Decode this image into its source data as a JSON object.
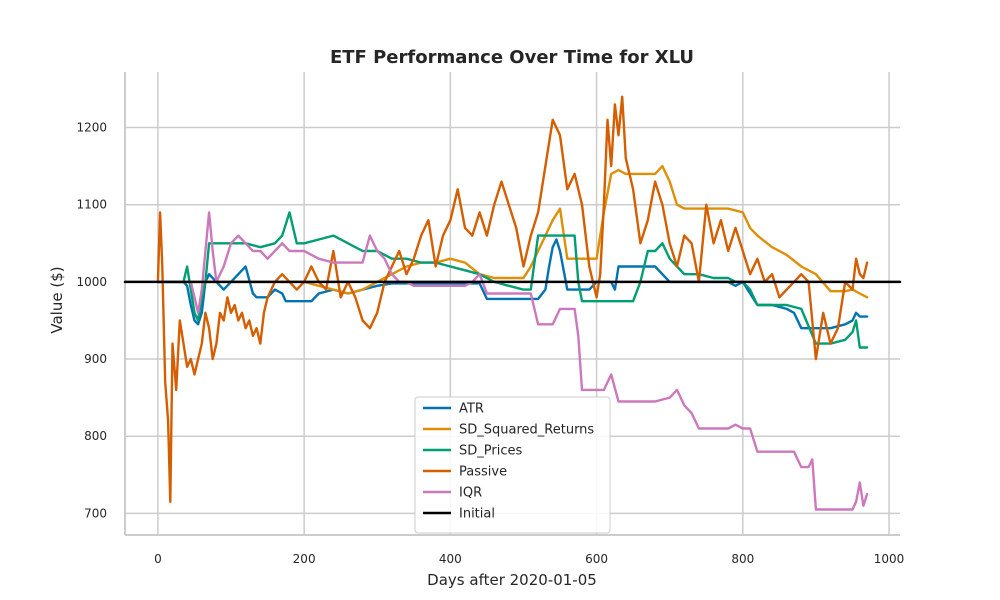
{
  "chart_data": {
    "type": "line",
    "title": "ETF Performance Over Time for XLU",
    "xlabel": "Days after 2020-01-05",
    "ylabel": "Value ($)",
    "xlim": [
      -45,
      1015
    ],
    "ylim": [
      672,
      1272
    ],
    "xticks": [
      0,
      200,
      400,
      600,
      800,
      1000
    ],
    "yticks": [
      700,
      800,
      900,
      1000,
      1100,
      1200
    ],
    "grid": true,
    "legend_position": "lower-center",
    "series": [
      {
        "name": "ATR",
        "color": "#0173b2",
        "x": [
          0,
          10,
          20,
          30,
          35,
          40,
          45,
          50,
          55,
          60,
          65,
          70,
          80,
          90,
          100,
          110,
          120,
          130,
          135,
          140,
          150,
          160,
          170,
          175,
          185,
          200,
          210,
          220,
          240,
          260,
          280,
          300,
          320,
          340,
          360,
          380,
          400,
          420,
          440,
          450,
          470,
          490,
          510,
          520,
          530,
          535,
          540,
          545,
          550,
          560,
          570,
          580,
          590,
          600,
          610,
          620,
          625,
          630,
          640,
          660,
          680,
          700,
          720,
          740,
          760,
          780,
          790,
          800,
          810,
          820,
          840,
          860,
          870,
          880,
          900,
          920,
          940,
          950,
          955,
          960,
          970
        ],
        "values": [
          1000,
          1000,
          1000,
          1000,
          1000,
          995,
          970,
          950,
          945,
          960,
          1000,
          1010,
          1000,
          990,
          1000,
          1010,
          1020,
          985,
          980,
          980,
          980,
          990,
          985,
          975,
          975,
          975,
          975,
          985,
          990,
          985,
          990,
          995,
          998,
          998,
          998,
          998,
          998,
          998,
          998,
          978,
          978,
          978,
          978,
          978,
          990,
          1020,
          1045,
          1055,
          1040,
          990,
          990,
          990,
          990,
          1000,
          1000,
          1000,
          990,
          1020,
          1020,
          1020,
          1020,
          1000,
          1000,
          1000,
          1000,
          1000,
          995,
          1000,
          985,
          970,
          970,
          965,
          960,
          940,
          940,
          940,
          945,
          950,
          960,
          955,
          955
        ]
      },
      {
        "name": "SD_Squared_Returns",
        "color": "#de8f05",
        "x": [
          0,
          20,
          40,
          60,
          80,
          100,
          120,
          140,
          160,
          180,
          200,
          220,
          240,
          260,
          280,
          300,
          320,
          340,
          360,
          380,
          400,
          420,
          440,
          460,
          480,
          500,
          510,
          520,
          530,
          540,
          550,
          560,
          580,
          600,
          610,
          620,
          630,
          640,
          660,
          680,
          690,
          700,
          710,
          720,
          740,
          760,
          780,
          800,
          810,
          820,
          840,
          860,
          880,
          900,
          920,
          940,
          950,
          960,
          970
        ],
        "values": [
          1000,
          1000,
          1000,
          1000,
          1000,
          1000,
          1000,
          1000,
          1000,
          1000,
          1000,
          995,
          990,
          985,
          990,
          1000,
          1010,
          1020,
          1025,
          1025,
          1030,
          1025,
          1010,
          1005,
          1005,
          1005,
          1020,
          1040,
          1060,
          1080,
          1095,
          1030,
          1030,
          1030,
          1090,
          1140,
          1145,
          1140,
          1140,
          1140,
          1150,
          1130,
          1100,
          1095,
          1095,
          1095,
          1095,
          1090,
          1070,
          1060,
          1045,
          1035,
          1020,
          1010,
          988,
          988,
          990,
          985,
          980
        ]
      },
      {
        "name": "SD_Prices",
        "color": "#029e73",
        "x": [
          0,
          20,
          35,
          40,
          45,
          50,
          55,
          60,
          65,
          70,
          80,
          100,
          120,
          140,
          160,
          170,
          180,
          190,
          200,
          220,
          240,
          260,
          280,
          300,
          320,
          340,
          360,
          380,
          400,
          420,
          440,
          460,
          480,
          500,
          510,
          520,
          540,
          560,
          570,
          575,
          580,
          600,
          620,
          640,
          650,
          660,
          670,
          680,
          690,
          700,
          710,
          720,
          740,
          760,
          780,
          790,
          800,
          810,
          820,
          840,
          860,
          880,
          900,
          910,
          920,
          940,
          950,
          955,
          960,
          970
        ],
        "values": [
          1000,
          1000,
          1000,
          1020,
          990,
          960,
          950,
          980,
          1000,
          1050,
          1050,
          1050,
          1050,
          1045,
          1050,
          1060,
          1090,
          1050,
          1050,
          1055,
          1060,
          1050,
          1040,
          1040,
          1030,
          1030,
          1025,
          1025,
          1020,
          1015,
          1010,
          1000,
          995,
          990,
          990,
          1060,
          1060,
          1060,
          1060,
          1000,
          975,
          975,
          975,
          975,
          975,
          1000,
          1040,
          1040,
          1050,
          1030,
          1020,
          1010,
          1010,
          1005,
          1005,
          1000,
          1000,
          990,
          970,
          970,
          970,
          965,
          920,
          920,
          920,
          925,
          935,
          950,
          915,
          915
        ]
      },
      {
        "name": "Passive",
        "color": "#d55e00",
        "x": [
          0,
          3,
          6,
          10,
          14,
          17,
          20,
          25,
          30,
          35,
          40,
          45,
          50,
          55,
          60,
          65,
          70,
          75,
          80,
          85,
          90,
          95,
          100,
          105,
          110,
          115,
          120,
          125,
          130,
          135,
          140,
          145,
          150,
          160,
          170,
          180,
          190,
          200,
          210,
          220,
          230,
          240,
          250,
          260,
          270,
          280,
          290,
          300,
          310,
          320,
          330,
          340,
          350,
          360,
          370,
          380,
          390,
          400,
          410,
          420,
          430,
          440,
          450,
          460,
          470,
          480,
          490,
          500,
          510,
          520,
          530,
          540,
          550,
          560,
          570,
          580,
          590,
          600,
          605,
          610,
          615,
          620,
          625,
          630,
          635,
          640,
          650,
          660,
          670,
          680,
          690,
          700,
          710,
          720,
          730,
          740,
          750,
          760,
          770,
          780,
          790,
          800,
          810,
          820,
          830,
          840,
          850,
          860,
          870,
          880,
          890,
          900,
          910,
          920,
          930,
          940,
          950,
          955,
          960,
          965,
          970
        ],
        "values": [
          1000,
          1090,
          1020,
          870,
          820,
          715,
          920,
          860,
          950,
          920,
          890,
          900,
          880,
          900,
          920,
          960,
          940,
          900,
          920,
          960,
          950,
          980,
          960,
          970,
          950,
          960,
          940,
          950,
          930,
          940,
          920,
          960,
          980,
          1000,
          1010,
          1000,
          990,
          1000,
          1020,
          1000,
          990,
          1040,
          980,
          1000,
          980,
          950,
          940,
          960,
          1000,
          1020,
          1040,
          1010,
          1030,
          1060,
          1080,
          1020,
          1060,
          1080,
          1120,
          1070,
          1060,
          1090,
          1060,
          1100,
          1130,
          1100,
          1070,
          1020,
          1060,
          1090,
          1150,
          1210,
          1190,
          1120,
          1140,
          1100,
          1020,
          980,
          1010,
          1100,
          1210,
          1150,
          1230,
          1190,
          1240,
          1160,
          1120,
          1050,
          1080,
          1130,
          1100,
          1050,
          1020,
          1060,
          1050,
          1000,
          1100,
          1050,
          1080,
          1040,
          1070,
          1040,
          1010,
          1030,
          1000,
          1010,
          980,
          990,
          1000,
          1010,
          1000,
          900,
          960,
          920,
          940,
          1000,
          990,
          1030,
          1010,
          1005,
          1025
        ]
      },
      {
        "name": "IQR",
        "color": "#cc78bc",
        "x": [
          0,
          20,
          40,
          45,
          50,
          55,
          60,
          65,
          70,
          75,
          80,
          90,
          100,
          110,
          120,
          130,
          140,
          150,
          160,
          170,
          180,
          200,
          220,
          240,
          260,
          280,
          290,
          300,
          310,
          320,
          330,
          340,
          350,
          360,
          380,
          400,
          420,
          430,
          440,
          450,
          460,
          480,
          490,
          500,
          510,
          520,
          530,
          540,
          550,
          560,
          570,
          575,
          580,
          600,
          610,
          620,
          630,
          640,
          660,
          680,
          700,
          710,
          720,
          730,
          740,
          760,
          780,
          790,
          800,
          810,
          820,
          830,
          860,
          870,
          880,
          890,
          895,
          900,
          920,
          940,
          950,
          955,
          960,
          965,
          970
        ],
        "values": [
          1000,
          1000,
          1000,
          1000,
          980,
          960,
          990,
          1040,
          1090,
          1040,
          1000,
          1020,
          1050,
          1060,
          1050,
          1040,
          1040,
          1030,
          1040,
          1050,
          1040,
          1040,
          1030,
          1025,
          1025,
          1025,
          1060,
          1040,
          1030,
          1010,
          1000,
          1000,
          995,
          995,
          995,
          995,
          995,
          1000,
          1010,
          985,
          985,
          985,
          985,
          985,
          985,
          945,
          945,
          945,
          965,
          965,
          965,
          930,
          860,
          860,
          860,
          880,
          845,
          845,
          845,
          845,
          850,
          860,
          840,
          830,
          810,
          810,
          810,
          815,
          810,
          810,
          780,
          780,
          780,
          780,
          760,
          760,
          770,
          705,
          705,
          705,
          705,
          715,
          740,
          710,
          725
        ]
      },
      {
        "name": "Initial",
        "color": "#000000",
        "x": [
          -45,
          1015
        ],
        "values": [
          1000,
          1000
        ]
      }
    ]
  }
}
